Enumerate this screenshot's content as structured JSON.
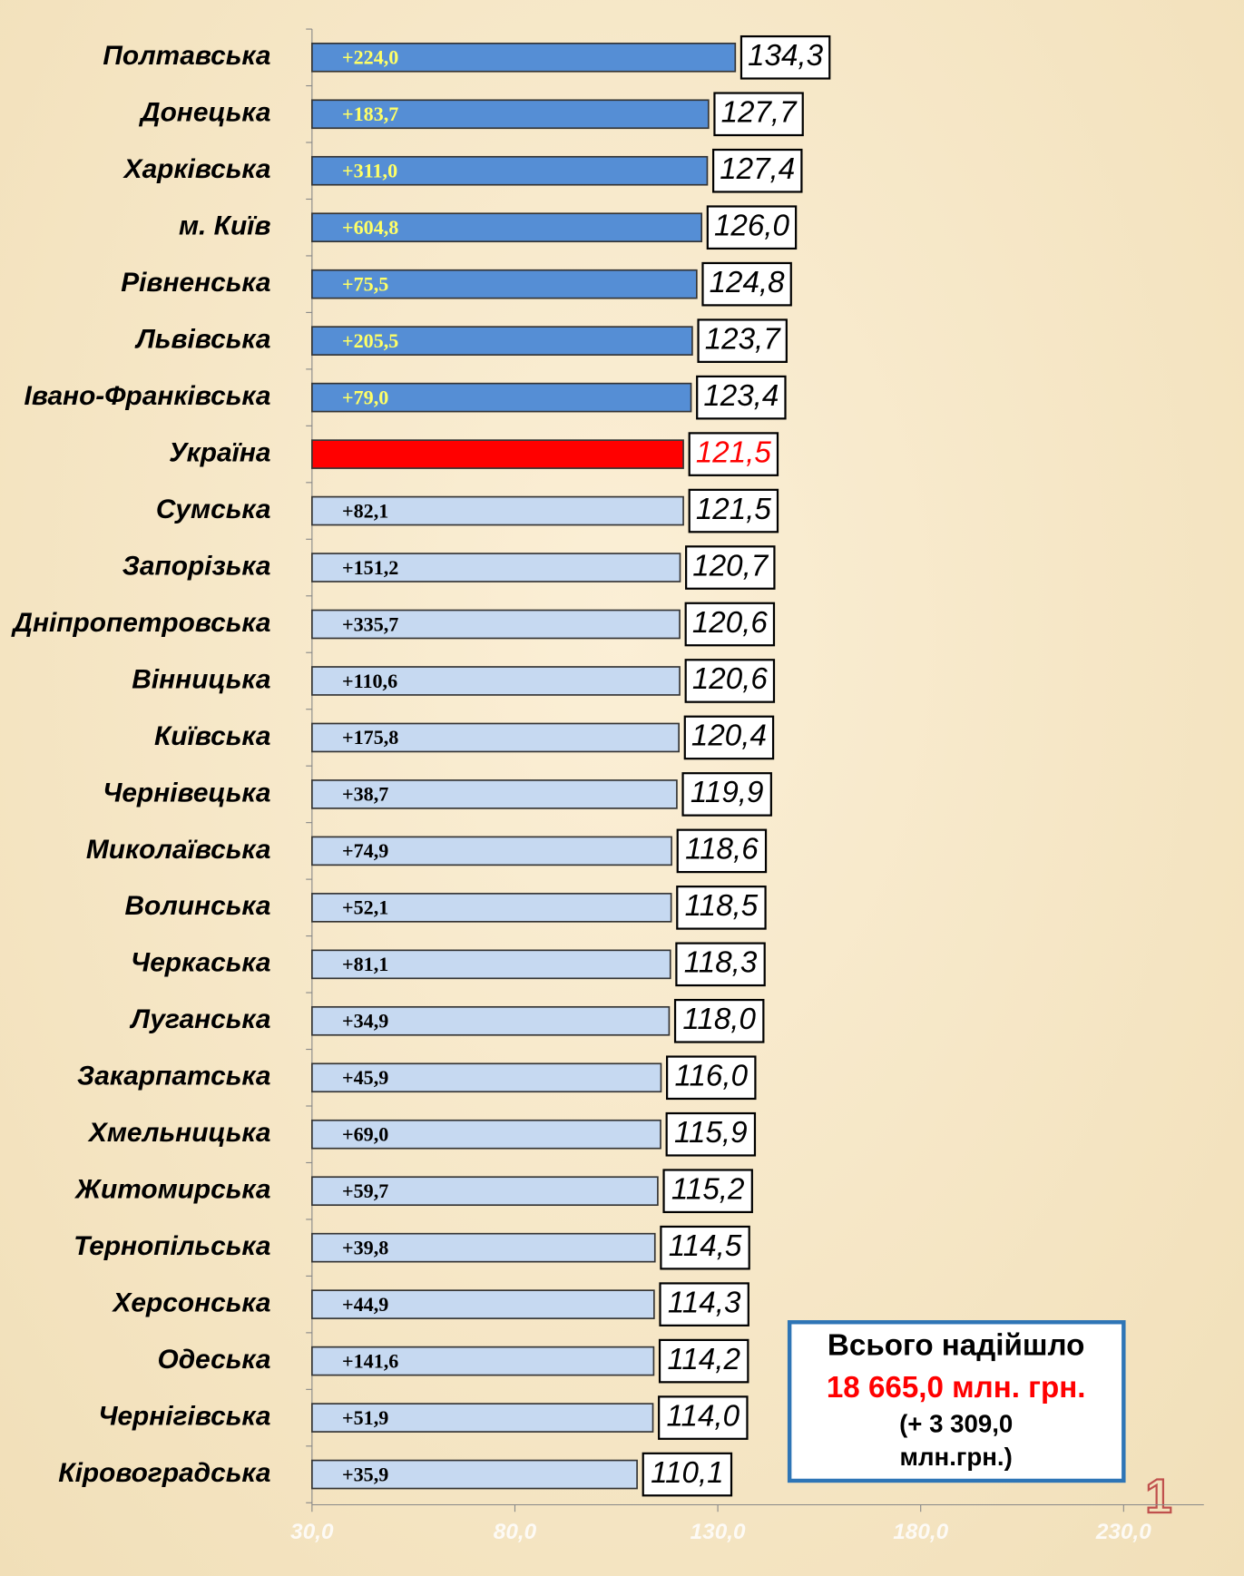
{
  "chart_data": {
    "type": "barh",
    "categories": [
      "Полтавська",
      "Донецька",
      "Харківська",
      "м. Київ",
      "Рівненська",
      "Львівська",
      "Івано-Франківська",
      "Україна",
      "Сумська",
      "Запорізька",
      "Дніпропетровська",
      "Вінницька",
      "Київська",
      "Чернівецька",
      "Миколаївська",
      "Волинська",
      "Черкаська",
      "Луганська",
      "Закарпатська",
      "Хмельницька",
      "Житомирська",
      "Тернопільська",
      "Херсонська",
      "Одеська",
      "Чернігівська",
      "Кіровоградська"
    ],
    "values": [
      134.3,
      127.7,
      127.4,
      126.0,
      124.8,
      123.7,
      123.4,
      121.5,
      121.5,
      120.7,
      120.6,
      120.6,
      120.4,
      119.9,
      118.6,
      118.5,
      118.3,
      118.0,
      116.0,
      115.9,
      115.2,
      114.5,
      114.3,
      114.2,
      114.0,
      110.1
    ],
    "value_labels": [
      "134,3",
      "127,7",
      "127,4",
      "126,0",
      "124,8",
      "123,7",
      "123,4",
      "121,5",
      "121,5",
      "120,7",
      "120,6",
      "120,6",
      "120,4",
      "119,9",
      "118,6",
      "118,5",
      "118,3",
      "118,0",
      "116,0",
      "115,9",
      "115,2",
      "114,5",
      "114,3",
      "114,2",
      "114,0",
      "110,1"
    ],
    "bar_annotations": [
      "+224,0",
      "+183,7",
      "+311,0",
      "+604,8",
      "+75,5",
      "+205,5",
      "+79,0",
      null,
      "+82,1",
      "+151,2",
      "+335,7",
      "+110,6",
      "+175,8",
      "+38,7",
      "+74,9",
      "+52,1",
      "+81,1",
      "+34,9",
      "+45,9",
      "+69,0",
      "+59,7",
      "+39,8",
      "+44,9",
      "+141,6",
      "+51,9",
      "+35,9"
    ],
    "colors": [
      "#558ed5",
      "#558ed5",
      "#558ed5",
      "#558ed5",
      "#558ed5",
      "#558ed5",
      "#558ed5",
      "#ff0000",
      "#c6d9f1",
      "#c6d9f1",
      "#c6d9f1",
      "#c6d9f1",
      "#c6d9f1",
      "#c6d9f1",
      "#c6d9f1",
      "#c6d9f1",
      "#c6d9f1",
      "#c6d9f1",
      "#c6d9f1",
      "#c6d9f1",
      "#c6d9f1",
      "#c6d9f1",
      "#c6d9f1",
      "#c6d9f1",
      "#c6d9f1",
      "#c6d9f1"
    ],
    "annotation_colors": [
      "#ffff66",
      "#ffff66",
      "#ffff66",
      "#ffff66",
      "#ffff66",
      "#ffff66",
      "#ffff66",
      null,
      "#000000",
      "#000000",
      "#000000",
      "#000000",
      "#000000",
      "#000000",
      "#000000",
      "#000000",
      "#000000",
      "#000000",
      "#000000",
      "#000000",
      "#000000",
      "#000000",
      "#000000",
      "#000000",
      "#000000",
      "#000000"
    ],
    "value_label_colors": [
      "#000000",
      "#000000",
      "#000000",
      "#000000",
      "#000000",
      "#000000",
      "#000000",
      "#ff0000",
      "#000000",
      "#000000",
      "#000000",
      "#000000",
      "#000000",
      "#000000",
      "#000000",
      "#000000",
      "#000000",
      "#000000",
      "#000000",
      "#000000",
      "#000000",
      "#000000",
      "#000000",
      "#000000",
      "#000000",
      "#000000"
    ],
    "xlim": [
      30,
      230
    ],
    "xticks": [
      {
        "value": 30,
        "label": "30,0"
      },
      {
        "value": 80,
        "label": "80,0"
      },
      {
        "value": 130,
        "label": "130,0"
      },
      {
        "value": 180,
        "label": "180,0"
      },
      {
        "value": 230,
        "label": "230,0"
      }
    ],
    "info_box": [
      "Всього надійшло",
      "18 665,0 млн. грн.",
      "(+ 3 309,0",
      "млн.грн.)"
    ],
    "page_number": "1"
  }
}
